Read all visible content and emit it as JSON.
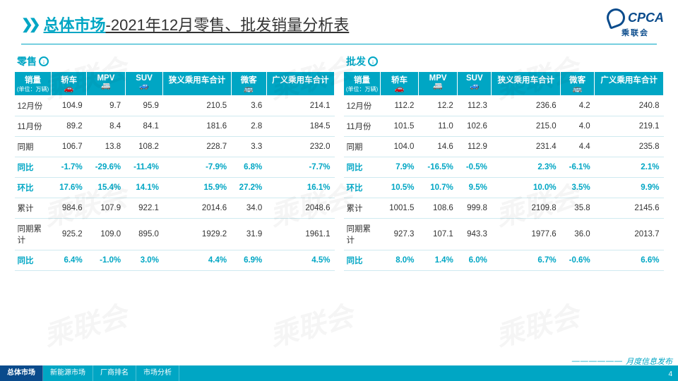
{
  "header": {
    "title_teal": "总体市场",
    "title_rest": "-2021年12月零售、批发销量分析表",
    "logo_text": "CPCA",
    "logo_sub": "乘联会"
  },
  "columns_row1": [
    "销量",
    "轿车",
    "MPV",
    "SUV",
    "狭义乘用车合计",
    "微客",
    "广义乘用车合计"
  ],
  "col0_sub": "(单位：万辆)",
  "icons": [
    "",
    "🚗",
    "🚐",
    "🚙",
    "",
    "🚌",
    ""
  ],
  "panel_left_title": "零售",
  "panel_right_title": "批发",
  "row_labels": [
    "12月份",
    "11月份",
    "同期",
    "同比",
    "环比",
    "累计",
    "同期累计",
    "同比"
  ],
  "teal_rows": [
    3,
    4,
    7
  ],
  "left": [
    [
      "104.9",
      "9.7",
      "95.9",
      "210.5",
      "3.6",
      "214.1"
    ],
    [
      "89.2",
      "8.4",
      "84.1",
      "181.6",
      "2.8",
      "184.5"
    ],
    [
      "106.7",
      "13.8",
      "108.2",
      "228.7",
      "3.3",
      "232.0"
    ],
    [
      "-1.7%",
      "-29.6%",
      "-11.4%",
      "-7.9%",
      "6.8%",
      "-7.7%"
    ],
    [
      "17.6%",
      "15.4%",
      "14.1%",
      "15.9%",
      "27.2%",
      "16.1%"
    ],
    [
      "984.6",
      "107.9",
      "922.1",
      "2014.6",
      "34.0",
      "2048.6"
    ],
    [
      "925.2",
      "109.0",
      "895.0",
      "1929.2",
      "31.9",
      "1961.1"
    ],
    [
      "6.4%",
      "-1.0%",
      "3.0%",
      "4.4%",
      "6.9%",
      "4.5%"
    ]
  ],
  "right": [
    [
      "112.2",
      "12.2",
      "112.3",
      "236.6",
      "4.2",
      "240.8"
    ],
    [
      "101.5",
      "11.0",
      "102.6",
      "215.0",
      "4.0",
      "219.1"
    ],
    [
      "104.0",
      "14.6",
      "112.9",
      "231.4",
      "4.4",
      "235.8"
    ],
    [
      "7.9%",
      "-16.5%",
      "-0.5%",
      "2.3%",
      "-6.1%",
      "2.1%"
    ],
    [
      "10.5%",
      "10.7%",
      "9.5%",
      "10.0%",
      "3.5%",
      "9.9%"
    ],
    [
      "1001.5",
      "108.6",
      "999.8",
      "2109.8",
      "35.8",
      "2145.6"
    ],
    [
      "927.3",
      "107.1",
      "943.3",
      "1977.6",
      "36.0",
      "2013.7"
    ],
    [
      "8.0%",
      "1.4%",
      "6.0%",
      "6.7%",
      "-0.6%",
      "6.6%"
    ]
  ],
  "footer": {
    "tabs": [
      "总体市场",
      "新能源市场",
      "厂商排名",
      "市场分析"
    ],
    "active_tab": 0,
    "right_label": "月度信息发布",
    "page": "4"
  },
  "style": {
    "accent": "#00a6c4",
    "dark": "#0a4b8c",
    "bg": "#ffffff",
    "grid": "#cfeaf0",
    "th_fontsize": 11.5,
    "td_fontsize": 11.5,
    "title_fontsize": 22
  }
}
